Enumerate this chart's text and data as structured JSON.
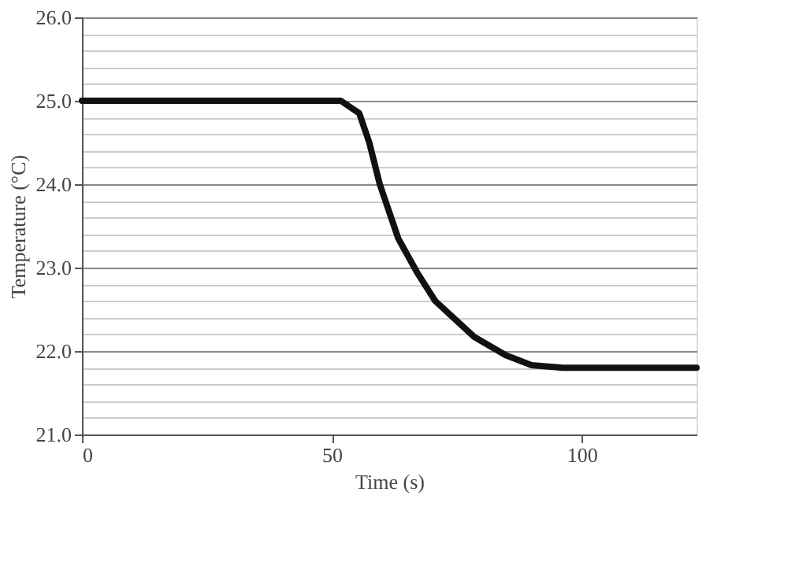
{
  "chart_data": {
    "type": "line",
    "xlabel": "Time (s)",
    "ylabel": "Temperature (°C)",
    "series": [
      {
        "color": "#111111",
        "x": [
          0,
          51.8,
          55.5,
          57.5,
          59.6,
          63.3,
          67,
          70.7,
          78.5,
          84.8,
          90,
          96.3,
          123
        ],
        "values": [
          25.0,
          25.0,
          24.85,
          24.5,
          24.0,
          23.35,
          22.95,
          22.6,
          22.17,
          21.95,
          21.83,
          21.8,
          21.8
        ]
      }
    ],
    "xlim": [
      0,
      123
    ],
    "xticks": [
      0,
      50,
      100
    ],
    "ylim": [
      21,
      26
    ],
    "yticks": [
      {
        "value": 21,
        "label": "21.0"
      },
      {
        "value": 21.2,
        "label": null
      },
      {
        "value": 21.4,
        "label": null
      },
      {
        "value": 21.6,
        "label": null
      },
      {
        "value": 21.8,
        "label": null
      },
      {
        "value": 22,
        "label": "22.0"
      },
      {
        "value": 22.2,
        "label": null
      },
      {
        "value": 22.4,
        "label": null
      },
      {
        "value": 22.6,
        "label": null
      },
      {
        "value": 22.8,
        "label": null
      },
      {
        "value": 23,
        "label": "23.0"
      },
      {
        "value": 23.2,
        "label": null
      },
      {
        "value": 23.4,
        "label": null
      },
      {
        "value": 23.6,
        "label": null
      },
      {
        "value": 23.8,
        "label": null
      },
      {
        "value": 24,
        "label": "24.0"
      },
      {
        "value": 24.2,
        "label": null
      },
      {
        "value": 24.4,
        "label": null
      },
      {
        "value": 24.6,
        "label": null
      },
      {
        "value": 24.8,
        "label": null
      },
      {
        "value": 25,
        "label": "25.0"
      },
      {
        "value": 25.2,
        "label": null
      },
      {
        "value": 25.4,
        "label": null
      },
      {
        "value": 25.6,
        "label": null
      },
      {
        "value": 25.8,
        "label": null
      },
      {
        "value": 26,
        "label": "26.0"
      }
    ],
    "grid": "y",
    "legend": false,
    "marker": "none",
    "line_style": "solid"
  }
}
